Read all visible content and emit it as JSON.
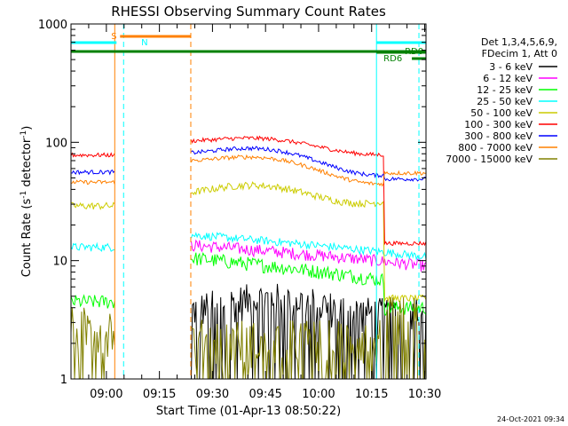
{
  "chart_data": {
    "type": "line",
    "title": "RHESSI Observing Summary Count Rates",
    "xlabel": "Start Time (01-Apr-13 08:50:22)",
    "ylabel_main": "Count Rate (s",
    "ylabel_sup": "-1",
    "ylabel_mid": " detector",
    "ylabel_end": ")",
    "yscale": "log",
    "ylim": [
      1,
      1000
    ],
    "xlim_min": [
      -0.37,
      100
    ],
    "ytick_labels": [
      "1",
      "10",
      "100",
      "1000"
    ],
    "xtick_labels": [
      "09:00",
      "09:15",
      "09:30",
      "09:45",
      "10:00",
      "10:15",
      "10:30"
    ],
    "xtick_values_min": [
      9.63,
      24.63,
      39.63,
      54.63,
      69.63,
      84.63,
      99.63
    ],
    "legend_header": [
      "Det 1,3,4,5,6,9,",
      "FDecim 1, Att 0"
    ],
    "series": [
      {
        "name": "3 - 6 keV",
        "color": "#000000"
      },
      {
        "name": "6 - 12 keV",
        "color": "#ff00ff"
      },
      {
        "name": "12 - 25 keV",
        "color": "#00ff00"
      },
      {
        "name": "25 - 50 keV",
        "color": "#00ffff"
      },
      {
        "name": "50 - 100 keV",
        "color": "#cccc00"
      },
      {
        "name": "100 - 300 keV",
        "color": "#ff0000"
      },
      {
        "name": "300 - 800 keV",
        "color": "#0000ff"
      },
      {
        "name": "800 - 7000 keV",
        "color": "#ff8000"
      },
      {
        "name": "7000 - 15000 keV",
        "color": "#808000"
      }
    ],
    "flag_labels": {
      "s": "S",
      "n": "N",
      "rd0": "RD0",
      "rd6": "RD6"
    },
    "gaps_min": [
      [
        12,
        33.5
      ]
    ],
    "saa_min": [
      [
        13.5,
        33.5
      ]
    ],
    "night_min": [
      [
        -0.37,
        12.5
      ],
      [
        86,
        100
      ]
    ],
    "rd0_min": [
      [
        86,
        100
      ]
    ],
    "rd6_min": [
      [
        -0.37,
        100
      ]
    ]
  },
  "timestamp": "24-Oct-2021 09:34"
}
